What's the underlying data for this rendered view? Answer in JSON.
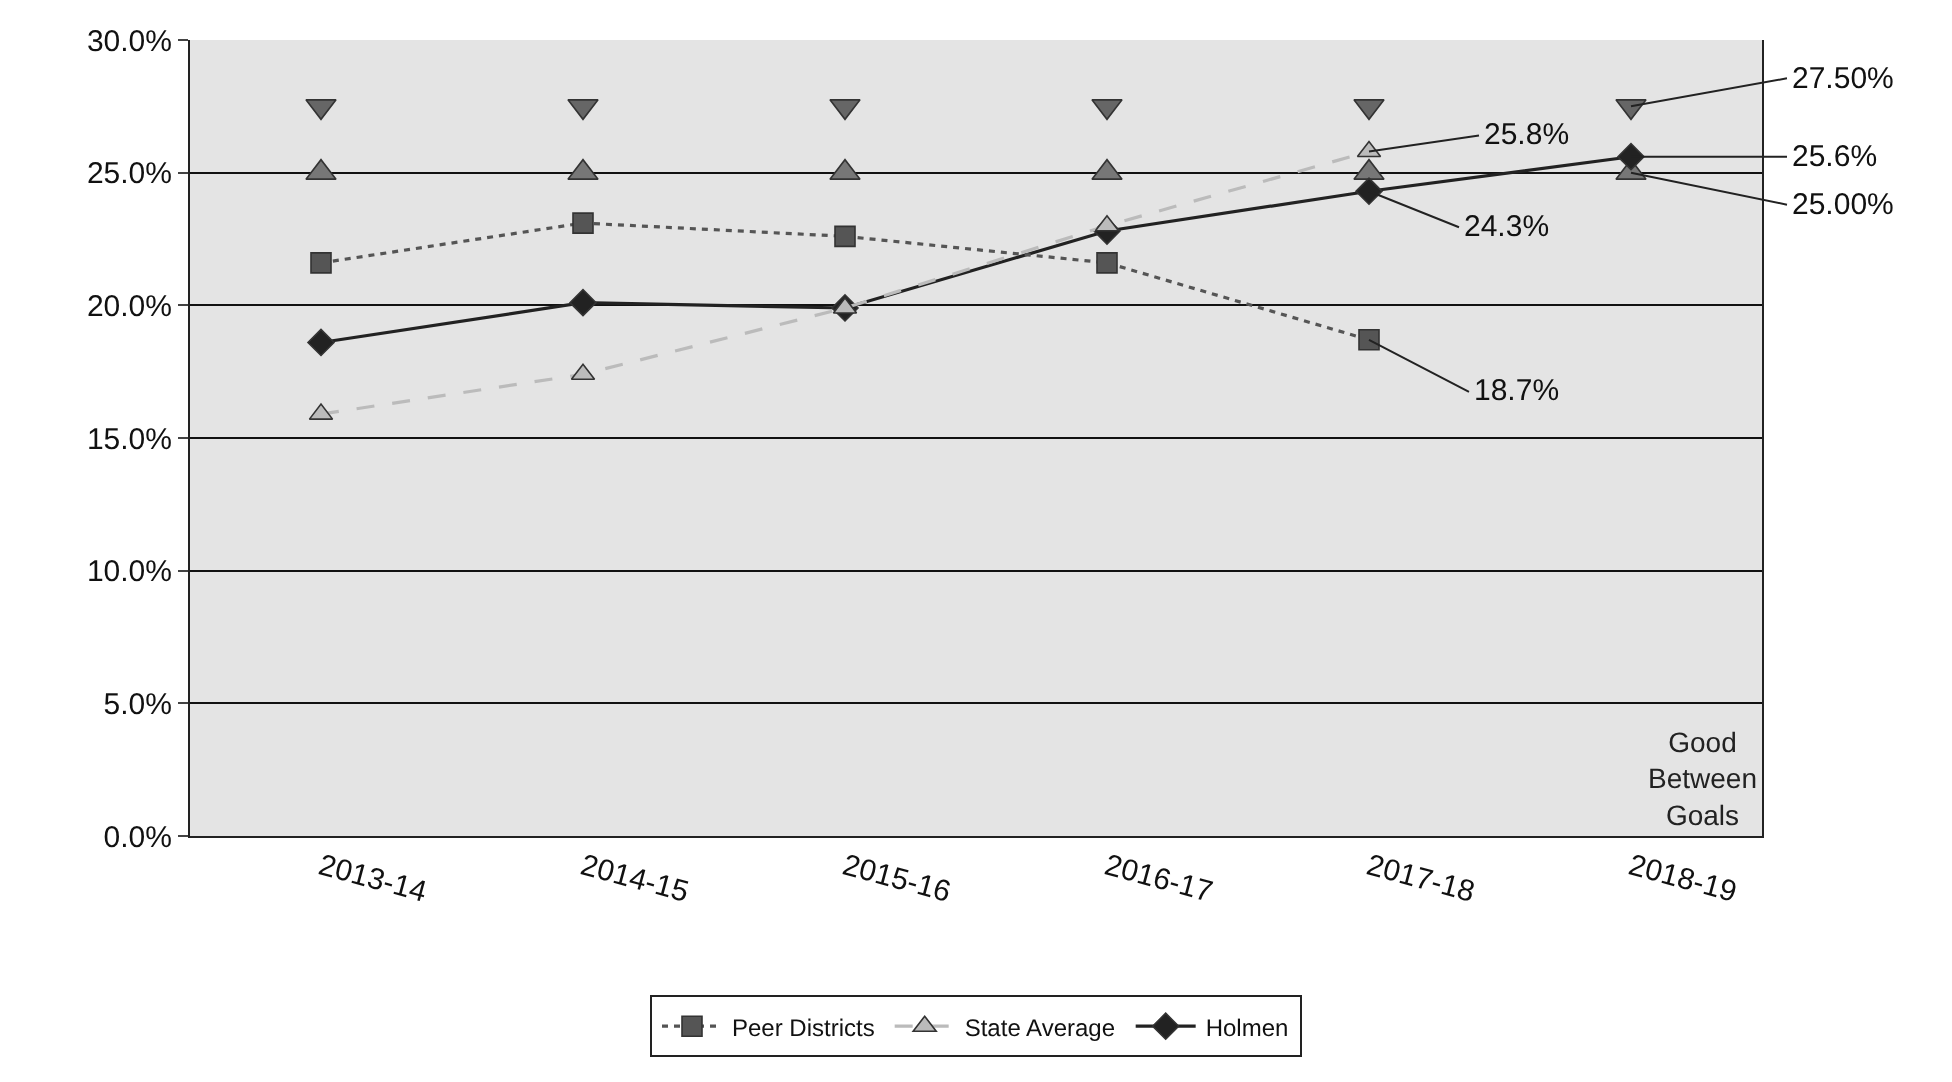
{
  "chart_data": {
    "type": "line",
    "categories": [
      "2013-14",
      "2014-15",
      "2015-16",
      "2016-17",
      "2017-18",
      "2018-19"
    ],
    "series": [
      {
        "name": "Peer Districts",
        "color": "#555555",
        "values": [
          21.6,
          23.1,
          22.6,
          21.6,
          18.7,
          null
        ],
        "marker": "square",
        "line_style": "dotted"
      },
      {
        "name": "State Average",
        "color": "#bbbbbb",
        "values": [
          15.9,
          17.4,
          19.9,
          23.0,
          25.8,
          null
        ],
        "marker": "triangle",
        "line_style": "dashed"
      },
      {
        "name": "Holmen",
        "color": "#222222",
        "values": [
          18.6,
          20.1,
          19.9,
          22.8,
          24.3,
          25.6
        ],
        "marker": "diamond",
        "line_style": "solid"
      },
      {
        "type": "scatter",
        "color": "#666666",
        "values": [
          27.5,
          27.5,
          27.5,
          27.5,
          27.5,
          27.5
        ],
        "marker": "triangle-down"
      },
      {
        "type": "scatter",
        "color": "#777777",
        "values": [
          25.0,
          25.0,
          25.0,
          25.0,
          25.0,
          25.0
        ],
        "marker": "triangle"
      }
    ],
    "ylim": [
      0,
      30
    ],
    "yticks": [
      {
        "value": 0,
        "label": "0.0%"
      },
      {
        "value": 5,
        "label": "5.0%"
      },
      {
        "value": 10,
        "label": "10.0%"
      },
      {
        "value": 15,
        "label": "15.0%"
      },
      {
        "value": 20,
        "label": "20.0%"
      },
      {
        "value": 25,
        "label": "25.0%"
      },
      {
        "value": 30,
        "label": "30.0%"
      }
    ],
    "grid": "y",
    "legend": "bottom",
    "annotations": [
      {
        "text": "27.50%",
        "x": "2018-19",
        "y": 27.5
      },
      {
        "text": "25.8%",
        "x": "2017-18",
        "y": 25.8
      },
      {
        "text": "25.6%",
        "x": "2018-19",
        "y": 25.6
      },
      {
        "text": "24.3%",
        "x": "2017-18",
        "y": 24.3
      },
      {
        "text": "25.00%",
        "x": "2018-19",
        "y": 25.0
      },
      {
        "text": "18.7%",
        "x": "2017-18",
        "y": 18.7
      },
      "Good Between Goals"
    ]
  }
}
